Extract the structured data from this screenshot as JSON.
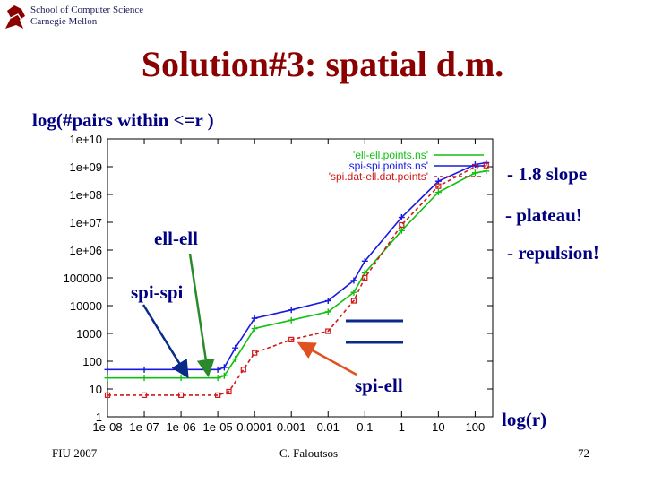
{
  "header": {
    "school_line1": "School of Computer Science",
    "school_line2": "Carnegie Mellon",
    "title": "Solution#3: spatial d.m."
  },
  "annotations": {
    "slope": "- 1.8 slope",
    "plateau": "- plateau!",
    "repulsion": "- repulsion!"
  },
  "footer": {
    "left": "FIU 2007",
    "center": "C. Faloutsos",
    "page": "72"
  },
  "colors": {
    "title": "#8b0000",
    "text": "#000080",
    "series_red": "#d01818",
    "series_blue": "#1818e0",
    "series_green": "#10c010",
    "arrow_green": "#2a8a2a",
    "arrow_blue": "#0a2a8a",
    "arrow_red": "#e05020"
  },
  "chart_data": {
    "type": "line",
    "title": "",
    "ylabel": "log(#pairs within <=r )",
    "xlabel": "log(r)",
    "x_scale": "log",
    "y_scale": "log",
    "xlim": [
      1e-08,
      300
    ],
    "ylim": [
      1,
      10000000000.0
    ],
    "x_ticks": [
      {
        "v": 1e-08,
        "label": "1e-08"
      },
      {
        "v": 1e-07,
        "label": "1e-07"
      },
      {
        "v": 1e-06,
        "label": "1e-06"
      },
      {
        "v": 1e-05,
        "label": "1e-05"
      },
      {
        "v": 0.0001,
        "label": "0.0001"
      },
      {
        "v": 0.001,
        "label": "0.001"
      },
      {
        "v": 0.01,
        "label": "0.01"
      },
      {
        "v": 0.1,
        "label": "0.1"
      },
      {
        "v": 1,
        "label": "1"
      },
      {
        "v": 10,
        "label": "10"
      },
      {
        "v": 100,
        "label": "100"
      }
    ],
    "y_ticks": [
      {
        "v": 1,
        "label": "1"
      },
      {
        "v": 10,
        "label": "10"
      },
      {
        "v": 100,
        "label": "100"
      },
      {
        "v": 1000,
        "label": "1000"
      },
      {
        "v": 10000,
        "label": "10000"
      },
      {
        "v": 100000,
        "label": "100000"
      },
      {
        "v": 1000000.0,
        "label": "1e+06"
      },
      {
        "v": 10000000.0,
        "label": "1e+07"
      },
      {
        "v": 100000000.0,
        "label": "1e+08"
      },
      {
        "v": 1000000000.0,
        "label": "1e+09"
      },
      {
        "v": 10000000000.0,
        "label": "1e+10"
      }
    ],
    "series": [
      {
        "name": "'ell-ell.points.ns'",
        "color": "#10c010",
        "marker": "plus",
        "x": [
          1e-08,
          1e-07,
          1e-06,
          1e-05,
          1.5e-05,
          3e-05,
          0.0001,
          0.001,
          0.01,
          0.05,
          0.1,
          1,
          10,
          100,
          200
        ],
        "y": [
          25,
          25,
          25,
          25,
          30,
          120,
          1500,
          3000,
          6000,
          30000,
          150000,
          5000000.0,
          120000000.0,
          600000000.0,
          700000000.0
        ]
      },
      {
        "name": "'spi-spi.points.ns'",
        "color": "#1818e0",
        "marker": "plus",
        "x": [
          1e-08,
          1e-07,
          1e-06,
          1e-05,
          1.5e-05,
          3e-05,
          0.0001,
          0.001,
          0.01,
          0.05,
          0.1,
          1,
          10,
          100,
          200
        ],
        "y": [
          50,
          50,
          50,
          50,
          60,
          300,
          3500,
          7000,
          15000,
          80000,
          400000,
          15000000.0,
          300000000.0,
          1200000000.0,
          1400000000.0
        ]
      },
      {
        "name": "'spi.dat-ell.dat.points'",
        "color": "#d01818",
        "marker": "square",
        "x": [
          1e-08,
          1e-07,
          1e-06,
          1e-05,
          2e-05,
          5e-05,
          0.0001,
          0.001,
          0.01,
          0.05,
          0.1,
          1,
          10,
          100,
          200
        ],
        "y": [
          6,
          6,
          6,
          6,
          8,
          50,
          200,
          600,
          1200,
          15000,
          100000,
          8000000.0,
          200000000.0,
          1000000000.0,
          1100000000.0
        ]
      }
    ],
    "legend_position": "top-right",
    "callouts": [
      {
        "label": "ell-ell",
        "series": "'ell-ell.points.ns'"
      },
      {
        "label": "spi-spi",
        "series": "'spi-spi.points.ns'"
      },
      {
        "label": "spi-ell",
        "series": "'spi.dat-ell.dat.points'"
      }
    ]
  }
}
